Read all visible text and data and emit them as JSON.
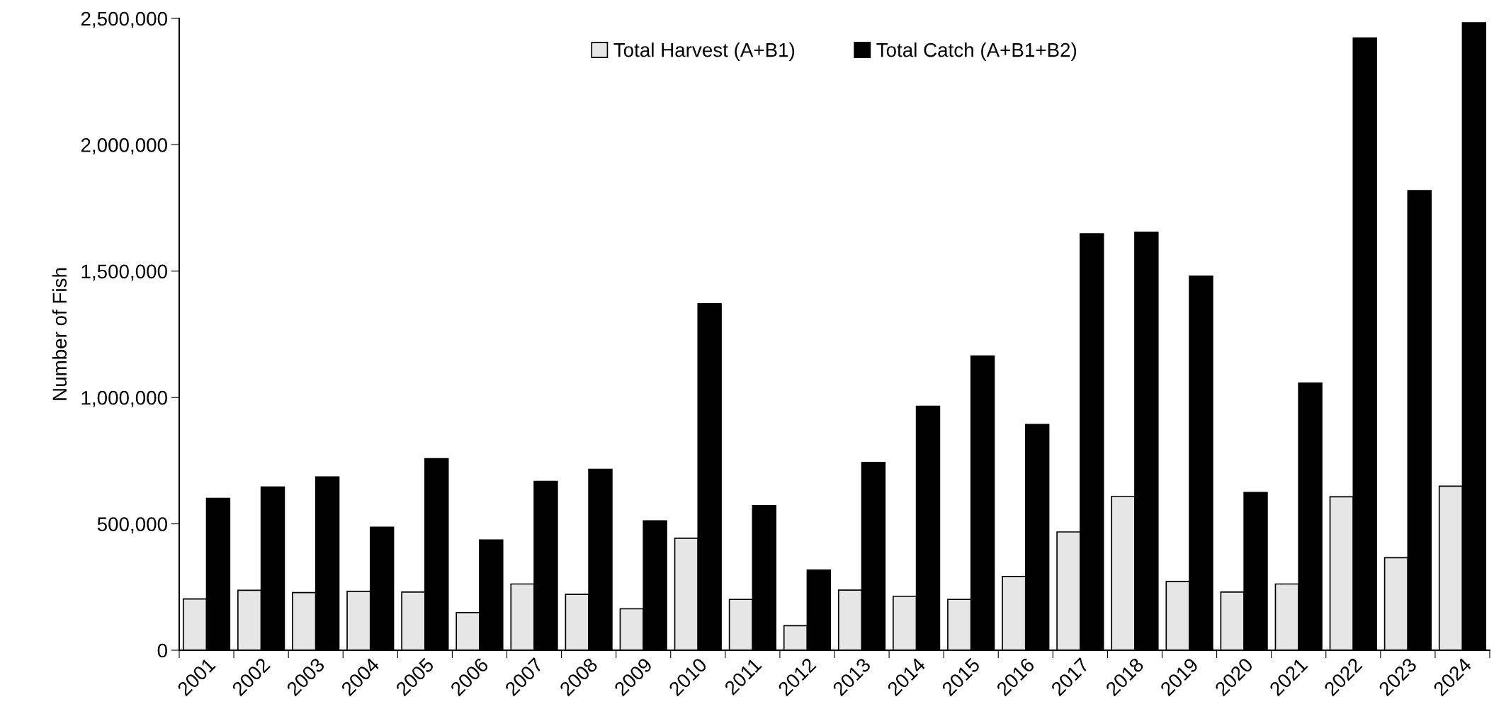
{
  "chart_data": {
    "type": "bar",
    "ylabel": "Number of Fish",
    "categories": [
      "2001",
      "2002",
      "2003",
      "2004",
      "2005",
      "2006",
      "2007",
      "2008",
      "2009",
      "2010",
      "2011",
      "2012",
      "2013",
      "2014",
      "2015",
      "2016",
      "2017",
      "2018",
      "2019",
      "2020",
      "2021",
      "2022",
      "2023",
      "2024"
    ],
    "series": [
      {
        "name": "Total Harvest (A+B1)",
        "color": "#e6e6e6",
        "values": [
          203000,
          237000,
          228000,
          233000,
          230000,
          149000,
          262000,
          221000,
          164000,
          443000,
          201000,
          97000,
          238000,
          213000,
          201000,
          292000,
          468000,
          609000,
          272000,
          230000,
          262000,
          607000,
          366000,
          649000
        ]
      },
      {
        "name": "Total Catch (A+B1+B2)",
        "color": "#000000",
        "values": [
          601000,
          646000,
          686000,
          487000,
          758000,
          436000,
          668000,
          716000,
          512000,
          1371000,
          572000,
          317000,
          743000,
          965000,
          1164000,
          893000,
          1648000,
          1654000,
          1480000,
          624000,
          1057000,
          2423000,
          1819000,
          2483000
        ]
      }
    ],
    "ylim": [
      0,
      2500000
    ],
    "yticks": [
      {
        "value": 0,
        "label": "0"
      },
      {
        "value": 500000,
        "label": "500,000"
      },
      {
        "value": 1000000,
        "label": "1,000,000"
      },
      {
        "value": 1500000,
        "label": "1,500,000"
      },
      {
        "value": 2000000,
        "label": "2,000,000"
      },
      {
        "value": 2500000,
        "label": "2,500,000"
      }
    ],
    "grid": false,
    "legend": "top"
  }
}
